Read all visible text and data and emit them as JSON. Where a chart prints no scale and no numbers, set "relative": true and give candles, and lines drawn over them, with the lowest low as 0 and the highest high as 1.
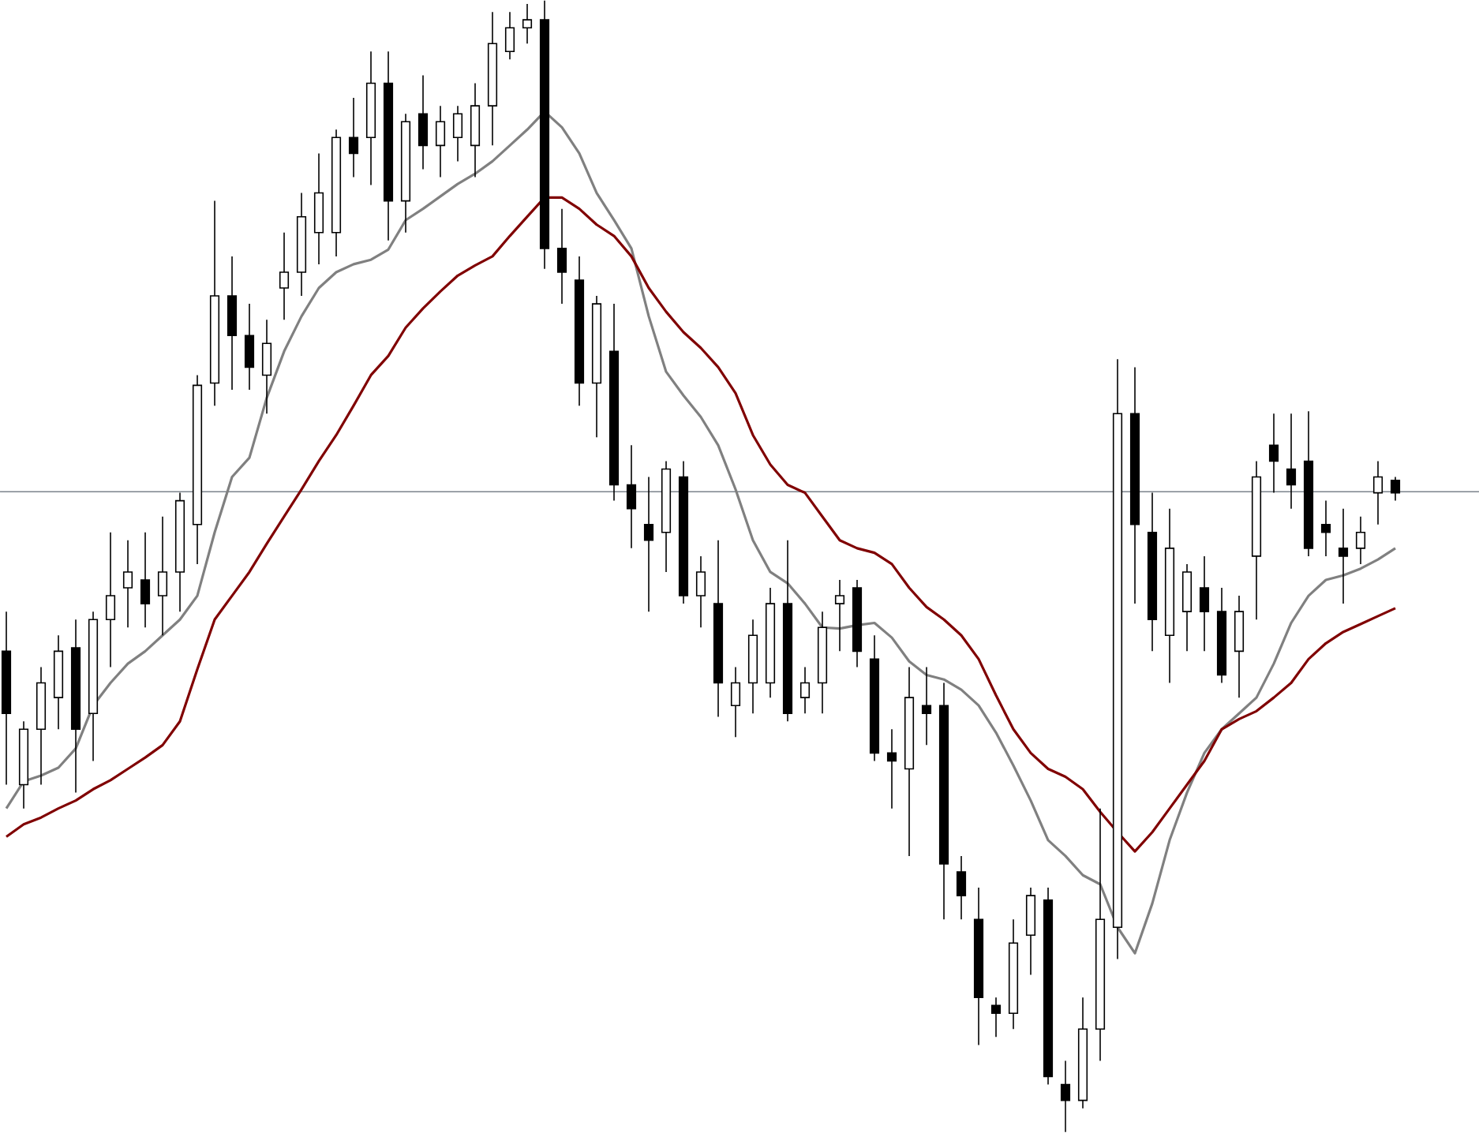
{
  "chart_data": {
    "type": "candlestick",
    "relative": true,
    "categories": [
      null,
      null,
      null,
      null,
      null,
      null,
      null,
      null,
      null,
      null,
      null,
      null,
      null,
      null,
      null,
      null,
      null,
      null,
      null,
      null,
      null,
      null,
      null,
      null,
      null,
      null,
      null,
      null,
      null,
      null,
      null,
      null,
      null,
      null,
      null,
      null,
      null,
      null,
      null,
      null,
      null,
      null,
      null,
      null,
      null,
      null,
      null,
      null,
      null,
      null,
      null,
      null,
      null,
      null,
      null,
      null,
      null,
      null,
      null,
      null,
      null,
      null,
      null,
      null,
      null,
      null,
      null,
      null,
      null,
      null,
      null,
      null,
      null,
      null,
      null,
      null,
      null,
      null,
      null,
      null,
      null
    ],
    "ohlc": [
      [
        0.425,
        0.46,
        0.307,
        0.37
      ],
      [
        0.307,
        0.363,
        0.286,
        0.356
      ],
      [
        0.356,
        0.411,
        0.307,
        0.397
      ],
      [
        0.384,
        0.439,
        0.356,
        0.425
      ],
      [
        0.428,
        0.453,
        0.3,
        0.356
      ],
      [
        0.37,
        0.46,
        0.328,
        0.453
      ],
      [
        0.453,
        0.53,
        0.411,
        0.474
      ],
      [
        0.481,
        0.523,
        0.446,
        0.495
      ],
      [
        0.488,
        0.53,
        0.446,
        0.467
      ],
      [
        0.474,
        0.544,
        0.439,
        0.495
      ],
      [
        0.495,
        0.565,
        0.46,
        0.558
      ],
      [
        0.537,
        0.669,
        0.502,
        0.66
      ],
      [
        0.662,
        0.823,
        0.642,
        0.739
      ],
      [
        0.739,
        0.774,
        0.656,
        0.704
      ],
      [
        0.704,
        0.732,
        0.656,
        0.676
      ],
      [
        0.669,
        0.718,
        0.635,
        0.697
      ],
      [
        0.746,
        0.795,
        0.718,
        0.76
      ],
      [
        0.76,
        0.83,
        0.739,
        0.809
      ],
      [
        0.795,
        0.865,
        0.767,
        0.83
      ],
      [
        0.795,
        0.886,
        0.774,
        0.879
      ],
      [
        0.879,
        0.914,
        0.844,
        0.865
      ],
      [
        0.879,
        0.955,
        0.837,
        0.927
      ],
      [
        0.927,
        0.955,
        0.788,
        0.823
      ],
      [
        0.823,
        0.9,
        0.795,
        0.893
      ],
      [
        0.9,
        0.934,
        0.851,
        0.872
      ],
      [
        0.872,
        0.907,
        0.844,
        0.893
      ],
      [
        0.879,
        0.907,
        0.858,
        0.9
      ],
      [
        0.872,
        0.927,
        0.844,
        0.907
      ],
      [
        0.907,
        0.99,
        0.872,
        0.962
      ],
      [
        0.955,
        0.99,
        0.948,
        0.976
      ],
      [
        0.976,
        0.997,
        0.962,
        0.983
      ],
      [
        0.983,
        1.0,
        0.763,
        0.781
      ],
      [
        0.781,
        0.816,
        0.732,
        0.76
      ],
      [
        0.753,
        0.774,
        0.642,
        0.662
      ],
      [
        0.662,
        0.739,
        0.614,
        0.732
      ],
      [
        0.69,
        0.732,
        0.558,
        0.572
      ],
      [
        0.572,
        0.607,
        0.516,
        0.551
      ],
      [
        0.537,
        0.579,
        0.46,
        0.523
      ],
      [
        0.53,
        0.593,
        0.495,
        0.586
      ],
      [
        0.579,
        0.593,
        0.467,
        0.474
      ],
      [
        0.474,
        0.509,
        0.446,
        0.495
      ],
      [
        0.467,
        0.523,
        0.367,
        0.397
      ],
      [
        0.377,
        0.411,
        0.349,
        0.397
      ],
      [
        0.397,
        0.453,
        0.37,
        0.439
      ],
      [
        0.397,
        0.481,
        0.384,
        0.467
      ],
      [
        0.467,
        0.523,
        0.363,
        0.37
      ],
      [
        0.384,
        0.411,
        0.37,
        0.397
      ],
      [
        0.397,
        0.46,
        0.37,
        0.446
      ],
      [
        0.467,
        0.488,
        0.425,
        0.474
      ],
      [
        0.481,
        0.488,
        0.411,
        0.425
      ],
      [
        0.418,
        0.439,
        0.328,
        0.335
      ],
      [
        0.335,
        0.356,
        0.286,
        0.328
      ],
      [
        0.321,
        0.411,
        0.244,
        0.384
      ],
      [
        0.377,
        0.411,
        0.342,
        0.37
      ],
      [
        0.377,
        0.397,
        0.188,
        0.237
      ],
      [
        0.23,
        0.244,
        0.188,
        0.209
      ],
      [
        0.188,
        0.216,
        0.077,
        0.119
      ],
      [
        0.112,
        0.119,
        0.084,
        0.105
      ],
      [
        0.105,
        0.188,
        0.091,
        0.167
      ],
      [
        0.174,
        0.216,
        0.139,
        0.209
      ],
      [
        0.205,
        0.216,
        0.042,
        0.049
      ],
      [
        0.042,
        0.063,
        0.0,
        0.028
      ],
      [
        0.028,
        0.119,
        0.021,
        0.091
      ],
      [
        0.091,
        0.286,
        0.063,
        0.188
      ],
      [
        0.181,
        0.683,
        0.153,
        0.635
      ],
      [
        0.635,
        0.676,
        0.467,
        0.537
      ],
      [
        0.53,
        0.565,
        0.425,
        0.453
      ],
      [
        0.439,
        0.551,
        0.397,
        0.516
      ],
      [
        0.46,
        0.502,
        0.425,
        0.495
      ],
      [
        0.481,
        0.509,
        0.425,
        0.46
      ],
      [
        0.46,
        0.481,
        0.397,
        0.404
      ],
      [
        0.425,
        0.474,
        0.384,
        0.46
      ],
      [
        0.509,
        0.593,
        0.453,
        0.579
      ],
      [
        0.607,
        0.635,
        0.565,
        0.593
      ],
      [
        0.586,
        0.635,
        0.551,
        0.572
      ],
      [
        0.593,
        0.637,
        0.509,
        0.516
      ],
      [
        0.537,
        0.558,
        0.509,
        0.53
      ],
      [
        0.516,
        0.551,
        0.467,
        0.509
      ],
      [
        0.516,
        0.544,
        0.502,
        0.53
      ],
      [
        0.565,
        0.593,
        0.537,
        0.579
      ],
      [
        0.576,
        0.579,
        0.558,
        0.565
      ]
    ],
    "series": [
      {
        "type": "line",
        "color": "#808080",
        "values": [
          0.286,
          0.31,
          0.315,
          0.322,
          0.339,
          0.377,
          0.397,
          0.414,
          0.425,
          0.439,
          0.453,
          0.474,
          0.53,
          0.579,
          0.596,
          0.649,
          0.69,
          0.721,
          0.746,
          0.76,
          0.767,
          0.771,
          0.78,
          0.806,
          0.816,
          0.827,
          0.838,
          0.847,
          0.858,
          0.872,
          0.886,
          0.902,
          0.888,
          0.865,
          0.83,
          0.806,
          0.781,
          0.721,
          0.672,
          0.651,
          0.632,
          0.607,
          0.568,
          0.523,
          0.495,
          0.485,
          0.467,
          0.446,
          0.445,
          0.448,
          0.45,
          0.437,
          0.416,
          0.404,
          0.4,
          0.391,
          0.377,
          0.353,
          0.324,
          0.293,
          0.258,
          0.244,
          0.227,
          0.219,
          0.181,
          0.158,
          0.202,
          0.258,
          0.3,
          0.335,
          0.356,
          0.37,
          0.384,
          0.414,
          0.45,
          0.474,
          0.488,
          0.492,
          0.498,
          0.506,
          0.516
        ]
      },
      {
        "type": "line",
        "color": "#800000",
        "values": [
          0.261,
          0.272,
          0.278,
          0.286,
          0.293,
          0.303,
          0.311,
          0.321,
          0.331,
          0.342,
          0.363,
          0.409,
          0.453,
          0.474,
          0.495,
          0.52,
          0.544,
          0.568,
          0.593,
          0.616,
          0.642,
          0.669,
          0.686,
          0.711,
          0.728,
          0.743,
          0.757,
          0.766,
          0.774,
          0.792,
          0.809,
          0.826,
          0.826,
          0.816,
          0.802,
          0.792,
          0.774,
          0.746,
          0.725,
          0.707,
          0.693,
          0.676,
          0.653,
          0.616,
          0.59,
          0.572,
          0.565,
          0.544,
          0.523,
          0.516,
          0.512,
          0.502,
          0.481,
          0.464,
          0.453,
          0.439,
          0.418,
          0.386,
          0.356,
          0.335,
          0.321,
          0.314,
          0.303,
          0.283,
          0.265,
          0.248,
          0.265,
          0.286,
          0.307,
          0.328,
          0.356,
          0.365,
          0.372,
          0.384,
          0.397,
          0.418,
          0.432,
          0.442,
          0.449,
          0.456,
          0.463
        ]
      }
    ],
    "ref_lines": [
      {
        "axis": "y",
        "value": 0.566,
        "color": "#808890"
      }
    ]
  }
}
